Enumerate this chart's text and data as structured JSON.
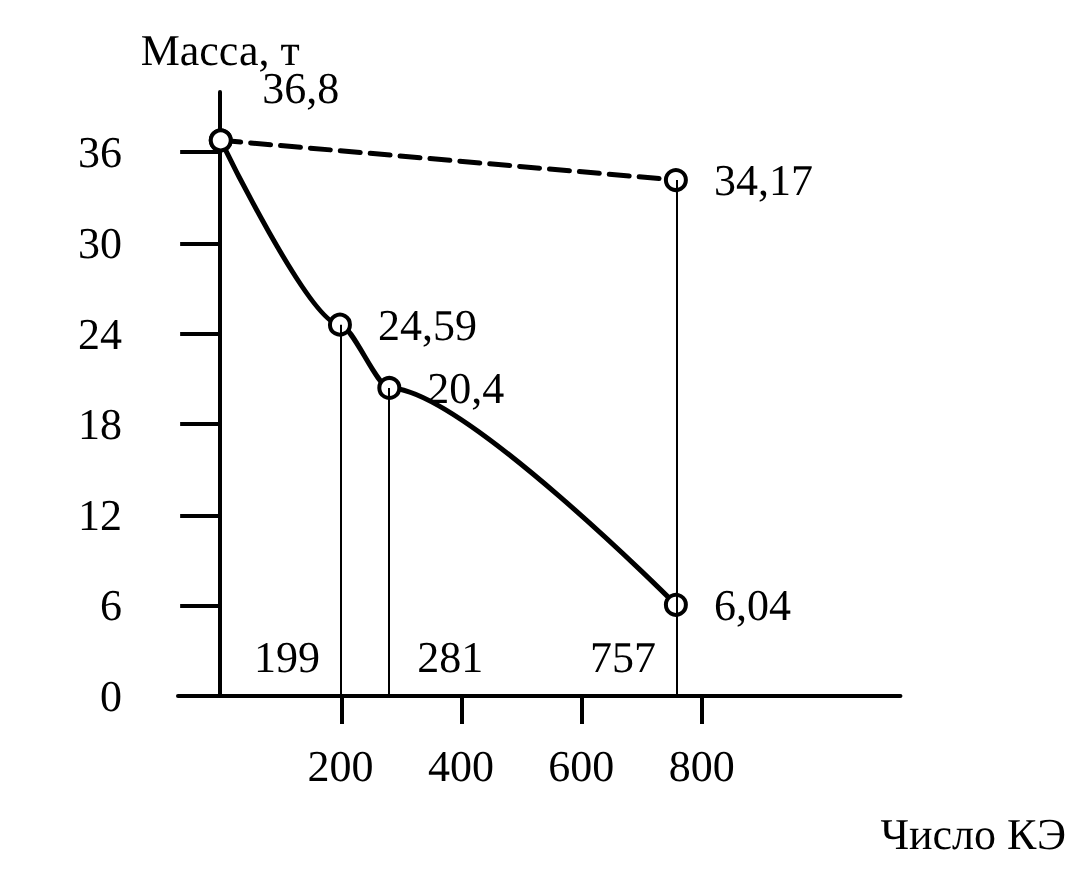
{
  "chart_data": {
    "type": "line",
    "xlabel": "Число КЭ",
    "ylabel": "Масса, т",
    "xlim": [
      -70,
      1130
    ],
    "xticks": [
      200,
      400,
      600,
      800
    ],
    "ylim": [
      0,
      40
    ],
    "yticks": [
      0,
      6,
      12,
      18,
      24,
      30,
      36
    ],
    "grid": false,
    "marker": "circle",
    "series": [
      {
        "color": "#000000",
        "line_style": "solid",
        "x": [
          1,
          199,
          281,
          757
        ],
        "values": [
          36.8,
          24.59,
          20.4,
          6.04
        ],
        "value_labels": [
          "36,8",
          "24,59",
          "20,4",
          "6,04"
        ]
      },
      {
        "color": "#000000",
        "line_style": "dashed",
        "x": [
          1,
          757
        ],
        "values": [
          36.8,
          34.17
        ],
        "value_labels": [
          null,
          "34,17"
        ]
      }
    ],
    "ref_lines": [
      {
        "axis": "x",
        "value": 199,
        "label": "199"
      },
      {
        "axis": "x",
        "value": 281,
        "label": "281"
      },
      {
        "axis": "x",
        "value": 757,
        "label": "757"
      }
    ]
  }
}
